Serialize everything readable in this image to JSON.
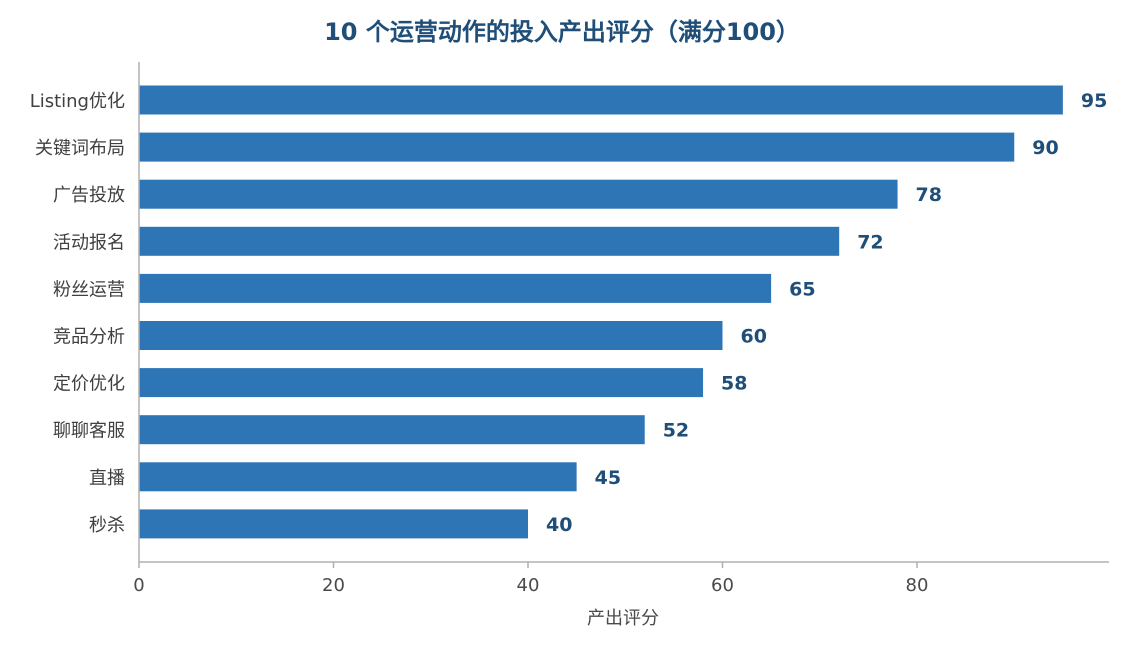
{
  "chart_data": {
    "type": "bar",
    "orientation": "horizontal",
    "title": "10 个运营动作的投入产出评分（满分100）",
    "xlabel": "产出评分",
    "ylabel": "",
    "categories": [
      "Listing优化",
      "关键词布局",
      "广告投放",
      "活动报名",
      "粉丝运营",
      "竞品分析",
      "定价优化",
      "聊聊客服",
      "直播",
      "秒杀"
    ],
    "values": [
      95,
      90,
      78,
      72,
      65,
      60,
      58,
      52,
      45,
      40
    ],
    "xlim": [
      0,
      100
    ],
    "xticks": [
      0,
      20,
      40,
      60,
      80
    ],
    "grid": false,
    "bar_color": "#2e75b6",
    "value_label_color": "#1f4e79",
    "title_color": "#1f4e79"
  }
}
